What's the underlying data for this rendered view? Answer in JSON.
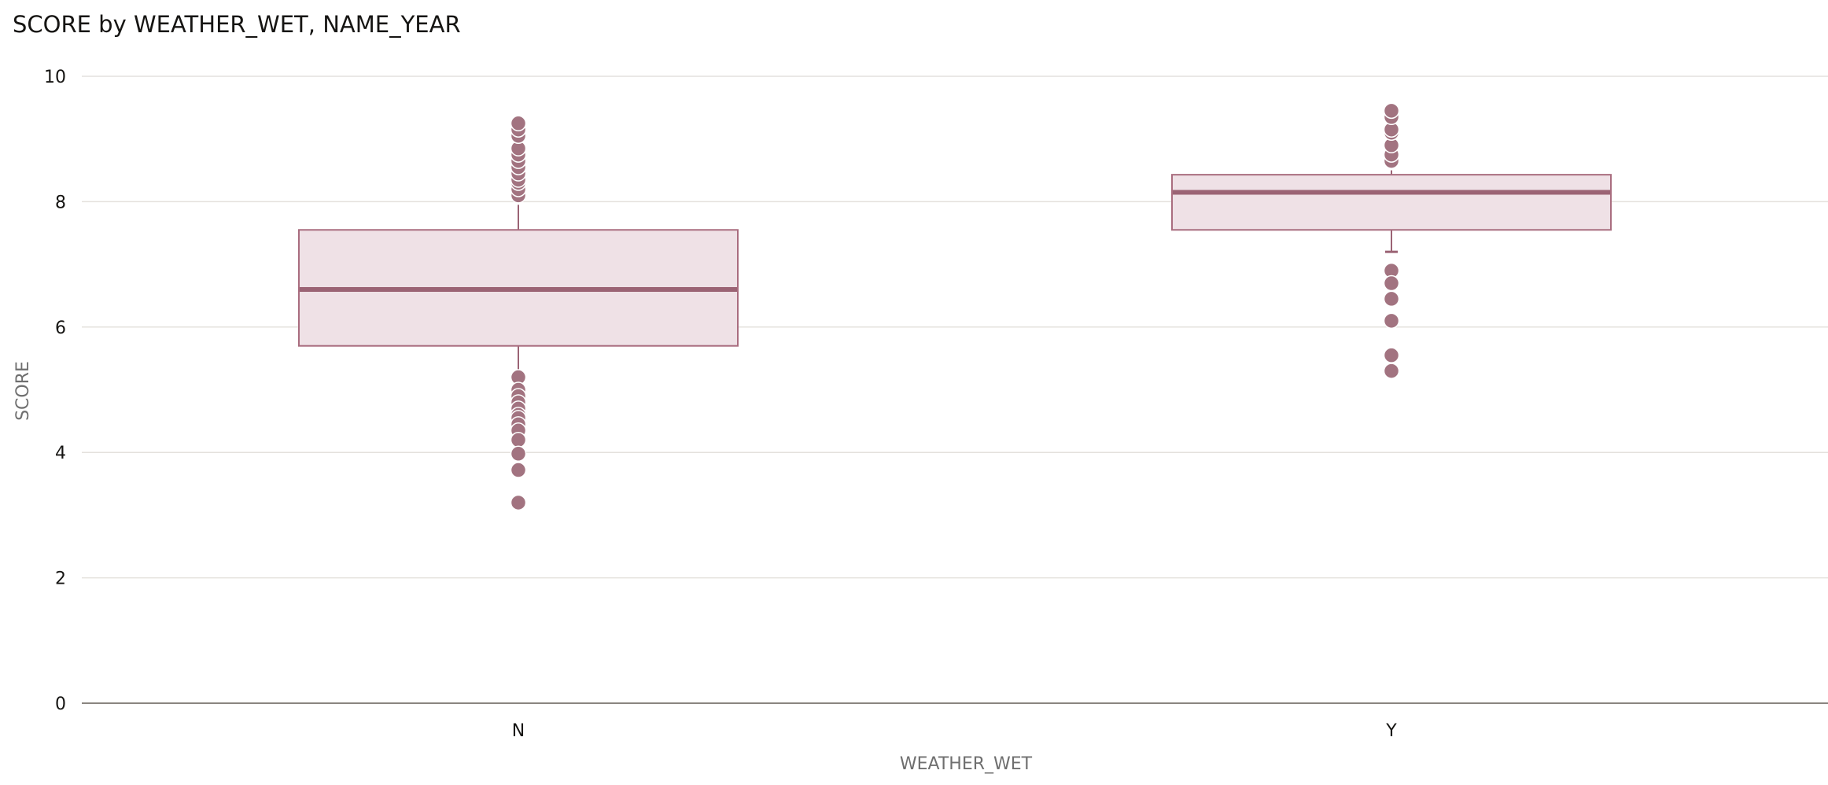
{
  "chart_data": {
    "type": "box",
    "title": "SCORE by WEATHER_WET, NAME_YEAR",
    "xlabel": "WEATHER_WET",
    "ylabel": "SCORE",
    "ylim": [
      0,
      10
    ],
    "yticks": [
      0,
      2,
      4,
      6,
      8,
      10
    ],
    "grid": true,
    "categories": [
      "N",
      "Y"
    ],
    "boxes": [
      {
        "category": "N",
        "q1": 5.7,
        "median": 6.6,
        "q3": 7.55,
        "whisker_low": 5.25,
        "whisker_high": 7.95,
        "outliers": [
          5.2,
          5.0,
          4.9,
          4.8,
          4.7,
          4.6,
          4.55,
          4.45,
          4.35,
          4.2,
          3.98,
          3.72,
          3.2,
          8.1,
          8.2,
          8.3,
          8.35,
          8.45,
          8.55,
          8.65,
          8.75,
          8.85,
          9.05,
          9.15,
          9.25
        ]
      },
      {
        "category": "Y",
        "q1": 7.55,
        "median": 8.15,
        "q3": 8.43,
        "whisker_low": 7.2,
        "whisker_high": 8.5,
        "outliers": [
          6.9,
          6.7,
          6.45,
          6.1,
          5.55,
          5.3,
          8.65,
          8.75,
          8.9,
          9.1,
          9.15,
          9.35,
          9.45
        ]
      }
    ],
    "colors": {
      "box_fill": "#efe1e6",
      "box_stroke": "#a96d7f",
      "median": "#9b6374",
      "whisker": "#9b6374",
      "outlier": "#a27380",
      "outlier_stroke": "#ffffff"
    }
  }
}
